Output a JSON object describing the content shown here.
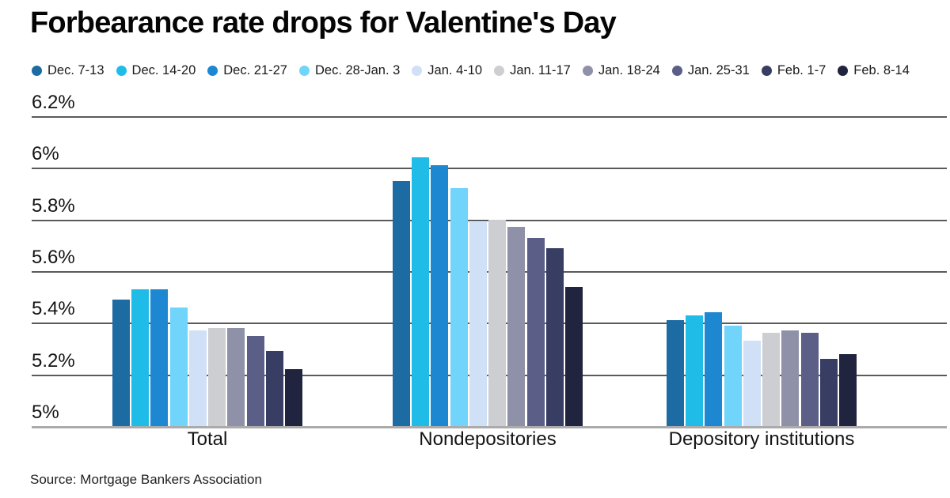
{
  "page": {
    "title": "Forbearance rate drops for Valentine's Day",
    "source": "Source: Mortgage Bankers Association"
  },
  "chart_data": {
    "type": "bar",
    "title": "Forbearance rate drops for Valentine's Day",
    "categories": [
      "Total",
      "Nondepositories",
      "Depository institutions"
    ],
    "series": [
      {
        "name": "Dec. 7-13",
        "color": "#1d6ba3",
        "values": [
          5.49,
          5.95,
          5.41
        ]
      },
      {
        "name": "Dec. 14-20",
        "color": "#20bce8",
        "values": [
          5.53,
          6.04,
          5.43
        ]
      },
      {
        "name": "Dec. 21-27",
        "color": "#1e87d2",
        "values": [
          5.53,
          6.01,
          5.44
        ]
      },
      {
        "name": "Dec. 28-Jan. 3",
        "color": "#70d4fb",
        "values": [
          5.46,
          5.92,
          5.39
        ]
      },
      {
        "name": "Jan. 4-10",
        "color": "#cfe0f7",
        "values": [
          5.37,
          5.79,
          5.33
        ]
      },
      {
        "name": "Jan. 11-17",
        "color": "#cdced2",
        "values": [
          5.38,
          5.8,
          5.36
        ]
      },
      {
        "name": "Jan. 18-24",
        "color": "#8e91a7",
        "values": [
          5.38,
          5.77,
          5.37
        ]
      },
      {
        "name": "Jan. 25-31",
        "color": "#5b5f88",
        "values": [
          5.35,
          5.73,
          5.36
        ]
      },
      {
        "name": "Feb. 1-7",
        "color": "#383d63",
        "values": [
          5.29,
          5.69,
          5.26
        ]
      },
      {
        "name": "Feb. 8-14",
        "color": "#20243f",
        "values": [
          5.22,
          5.54,
          5.28
        ]
      }
    ],
    "y_ticks": [
      {
        "label": "6.2%",
        "value": 6.2
      },
      {
        "label": "6%",
        "value": 6.0
      },
      {
        "label": "5.8%",
        "value": 5.8
      },
      {
        "label": "5.6%",
        "value": 5.6
      },
      {
        "label": "5.4%",
        "value": 5.4
      },
      {
        "label": "5.2%",
        "value": 5.2
      },
      {
        "label": "5%",
        "value": 5.0
      }
    ],
    "ylim": [
      5.0,
      6.2
    ],
    "grid": true,
    "legend_position": "top",
    "xlabel": "",
    "ylabel": ""
  },
  "colors": {
    "gridline": "#595a5c",
    "baseline": "#ababab",
    "background": "#ffffff",
    "text": "#1a1a1a"
  }
}
